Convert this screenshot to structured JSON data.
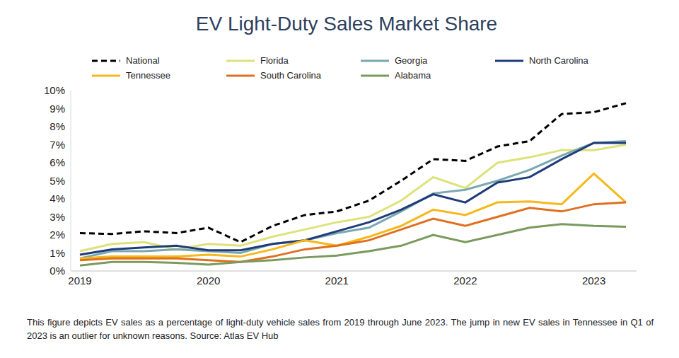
{
  "chart_data": {
    "type": "line",
    "title": "EV Light-Duty Sales Market Share",
    "caption": "This figure depicts EV sales as a percentage of light-duty vehicle sales from 2019 through June 2023. The jump in new EV sales in Tennessee in Q1 of 2023 is an outlier for unknown reasons.  Source: Atlas EV Hub",
    "categories": [
      "2019",
      null,
      null,
      null,
      "2020",
      null,
      null,
      null,
      "2021",
      null,
      null,
      null,
      "2022",
      null,
      null,
      null,
      "2023",
      null
    ],
    "series": [
      {
        "name": "National",
        "color": "#000000",
        "line_style": "dashed",
        "values": [
          2.1,
          2.05,
          2.2,
          2.1,
          2.4,
          1.6,
          2.5,
          3.1,
          3.3,
          3.9,
          5.0,
          6.2,
          6.1,
          6.9,
          7.2,
          8.7,
          8.8,
          9.3
        ]
      },
      {
        "name": "Florida",
        "color": "#dde27a",
        "line_style": "solid",
        "values": [
          1.1,
          1.5,
          1.6,
          1.2,
          1.5,
          1.4,
          1.9,
          2.3,
          2.7,
          3.0,
          3.9,
          5.2,
          4.6,
          6.0,
          6.3,
          6.7,
          6.7,
          7.0
        ]
      },
      {
        "name": "Georgia",
        "color": "#7aa8b0",
        "line_style": "solid",
        "values": [
          0.7,
          1.1,
          1.1,
          1.2,
          1.1,
          1.0,
          1.5,
          1.7,
          2.1,
          2.4,
          3.3,
          4.3,
          4.5,
          5.0,
          5.6,
          6.4,
          7.1,
          7.2
        ]
      },
      {
        "name": "North Carolina",
        "color": "#1f3c7a",
        "line_style": "solid",
        "values": [
          0.9,
          1.2,
          1.3,
          1.4,
          1.15,
          1.15,
          1.5,
          1.7,
          2.2,
          2.7,
          3.4,
          4.25,
          3.8,
          4.9,
          5.2,
          6.2,
          7.1,
          7.1
        ]
      },
      {
        "name": "Tennessee",
        "color": "#f6b81a",
        "line_style": "solid",
        "values": [
          0.7,
          0.8,
          0.8,
          0.8,
          0.9,
          0.8,
          1.2,
          1.7,
          1.4,
          1.9,
          2.5,
          3.4,
          3.1,
          3.8,
          3.85,
          3.7,
          5.4,
          3.8
        ]
      },
      {
        "name": "South Carolina",
        "color": "#e07020",
        "line_style": "solid",
        "values": [
          0.6,
          0.7,
          0.7,
          0.7,
          0.6,
          0.5,
          0.8,
          1.2,
          1.4,
          1.7,
          2.3,
          2.9,
          2.5,
          3.0,
          3.5,
          3.3,
          3.7,
          3.8
        ]
      },
      {
        "name": "Alabama",
        "color": "#7a9a5e",
        "line_style": "solid",
        "values": [
          0.3,
          0.5,
          0.5,
          0.45,
          0.35,
          0.5,
          0.6,
          0.75,
          0.85,
          1.1,
          1.4,
          2.0,
          1.6,
          2.0,
          2.4,
          2.6,
          2.5,
          2.45
        ]
      }
    ],
    "ylim": [
      0,
      10
    ],
    "yticks": [
      {
        "value": 0,
        "label": "0%"
      },
      {
        "value": 1,
        "label": "1%"
      },
      {
        "value": 2,
        "label": "2%"
      },
      {
        "value": 3,
        "label": "3%"
      },
      {
        "value": 4,
        "label": "4%"
      },
      {
        "value": 5,
        "label": "5%"
      },
      {
        "value": 6,
        "label": "6%"
      },
      {
        "value": 7,
        "label": "7%"
      },
      {
        "value": 8,
        "label": "8%"
      },
      {
        "value": 9,
        "label": "9%"
      },
      {
        "value": 10,
        "label": "10%"
      }
    ],
    "grid": false,
    "legend": "top"
  }
}
